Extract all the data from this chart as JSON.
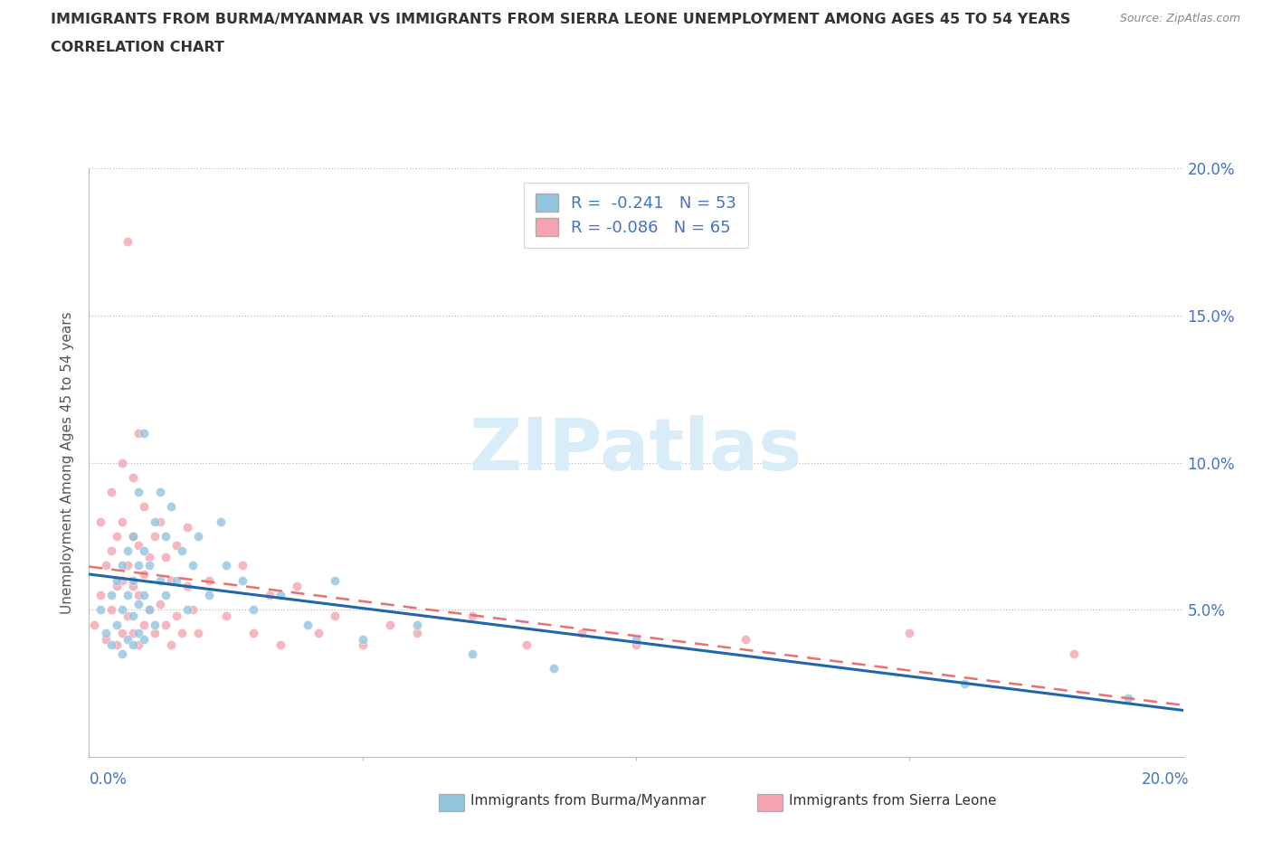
{
  "title_line1": "IMMIGRANTS FROM BURMA/MYANMAR VS IMMIGRANTS FROM SIERRA LEONE UNEMPLOYMENT AMONG AGES 45 TO 54 YEARS",
  "title_line2": "CORRELATION CHART",
  "source": "Source: ZipAtlas.com",
  "ylabel": "Unemployment Among Ages 45 to 54 years",
  "xlim": [
    0.0,
    0.2
  ],
  "ylim": [
    0.0,
    0.2
  ],
  "legend_label1": "Immigrants from Burma/Myanmar",
  "legend_label2": "Immigrants from Sierra Leone",
  "r1": -0.241,
  "n1": 53,
  "r2": -0.086,
  "n2": 65,
  "color_burma": "#92c5de",
  "color_sierra": "#f4a4b0",
  "color_burma_line": "#2166ac",
  "color_sierra_line": "#e87070",
  "watermark_color": "#d8edf8",
  "background_color": "#ffffff",
  "grid_color": "#bbbbbb",
  "title_color": "#333333",
  "axis_label_color": "#4472c4",
  "burma_x": [
    0.002,
    0.003,
    0.004,
    0.004,
    0.005,
    0.005,
    0.006,
    0.006,
    0.006,
    0.007,
    0.007,
    0.007,
    0.008,
    0.008,
    0.008,
    0.008,
    0.009,
    0.009,
    0.009,
    0.009,
    0.01,
    0.01,
    0.01,
    0.01,
    0.011,
    0.011,
    0.012,
    0.012,
    0.013,
    0.013,
    0.014,
    0.014,
    0.015,
    0.016,
    0.017,
    0.018,
    0.019,
    0.02,
    0.022,
    0.024,
    0.025,
    0.028,
    0.03,
    0.035,
    0.04,
    0.045,
    0.05,
    0.06,
    0.07,
    0.085,
    0.1,
    0.16,
    0.19
  ],
  "burma_y": [
    0.05,
    0.042,
    0.038,
    0.055,
    0.045,
    0.06,
    0.035,
    0.05,
    0.065,
    0.04,
    0.055,
    0.07,
    0.038,
    0.048,
    0.06,
    0.075,
    0.042,
    0.052,
    0.065,
    0.09,
    0.04,
    0.055,
    0.07,
    0.11,
    0.05,
    0.065,
    0.045,
    0.08,
    0.06,
    0.09,
    0.055,
    0.075,
    0.085,
    0.06,
    0.07,
    0.05,
    0.065,
    0.075,
    0.055,
    0.08,
    0.065,
    0.06,
    0.05,
    0.055,
    0.045,
    0.06,
    0.04,
    0.045,
    0.035,
    0.03,
    0.04,
    0.025,
    0.02
  ],
  "sierra_x": [
    0.001,
    0.002,
    0.002,
    0.003,
    0.003,
    0.004,
    0.004,
    0.004,
    0.005,
    0.005,
    0.005,
    0.006,
    0.006,
    0.006,
    0.006,
    0.007,
    0.007,
    0.007,
    0.008,
    0.008,
    0.008,
    0.008,
    0.009,
    0.009,
    0.009,
    0.009,
    0.01,
    0.01,
    0.01,
    0.011,
    0.011,
    0.012,
    0.012,
    0.013,
    0.013,
    0.014,
    0.014,
    0.015,
    0.015,
    0.016,
    0.016,
    0.017,
    0.018,
    0.018,
    0.019,
    0.02,
    0.022,
    0.025,
    0.028,
    0.03,
    0.033,
    0.035,
    0.038,
    0.042,
    0.045,
    0.05,
    0.055,
    0.06,
    0.07,
    0.08,
    0.09,
    0.1,
    0.12,
    0.15,
    0.18
  ],
  "sierra_y": [
    0.045,
    0.055,
    0.08,
    0.04,
    0.065,
    0.05,
    0.07,
    0.09,
    0.038,
    0.058,
    0.075,
    0.042,
    0.06,
    0.08,
    0.1,
    0.048,
    0.065,
    0.175,
    0.042,
    0.058,
    0.075,
    0.095,
    0.038,
    0.055,
    0.072,
    0.11,
    0.045,
    0.062,
    0.085,
    0.05,
    0.068,
    0.042,
    0.075,
    0.052,
    0.08,
    0.045,
    0.068,
    0.038,
    0.06,
    0.048,
    0.072,
    0.042,
    0.058,
    0.078,
    0.05,
    0.042,
    0.06,
    0.048,
    0.065,
    0.042,
    0.055,
    0.038,
    0.058,
    0.042,
    0.048,
    0.038,
    0.045,
    0.042,
    0.048,
    0.038,
    0.042,
    0.038,
    0.04,
    0.042,
    0.035
  ]
}
